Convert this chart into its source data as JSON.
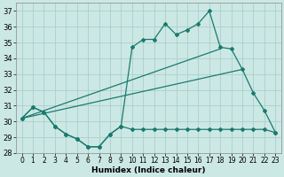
{
  "xlabel": "Humidex (Indice chaleur)",
  "bg_color": "#cce8e4",
  "grid_color": "#aacfcb",
  "line_color": "#1a7a6e",
  "xlim": [
    -0.5,
    23.5
  ],
  "ylim": [
    28,
    37.5
  ],
  "xticks": [
    0,
    1,
    2,
    3,
    4,
    5,
    6,
    7,
    8,
    9,
    10,
    11,
    12,
    13,
    14,
    15,
    16,
    17,
    18,
    19,
    20,
    21,
    22,
    23
  ],
  "yticks": [
    28,
    29,
    30,
    31,
    32,
    33,
    34,
    35,
    36,
    37
  ],
  "series1_x": [
    0,
    1,
    2,
    3,
    4,
    5,
    6,
    7,
    8,
    9,
    10,
    11,
    12,
    13,
    14,
    15,
    16,
    17,
    18,
    19,
    20,
    21,
    22,
    23
  ],
  "series1_y": [
    30.2,
    30.9,
    30.6,
    29.7,
    29.2,
    28.9,
    28.4,
    28.4,
    29.2,
    29.7,
    34.7,
    35.2,
    35.2,
    36.2,
    35.5,
    35.8,
    36.2,
    37.0,
    34.7,
    34.6,
    33.3,
    31.8,
    30.7,
    29.3
  ],
  "series2_x": [
    0,
    18
  ],
  "series2_y": [
    30.2,
    34.6
  ],
  "series3_x": [
    0,
    20
  ],
  "series3_y": [
    30.2,
    33.3
  ],
  "series4_x": [
    0,
    1,
    2,
    3,
    4,
    5,
    6,
    7,
    8,
    9,
    10,
    11,
    12,
    13,
    14,
    15,
    16,
    17,
    18,
    19,
    20,
    21,
    22,
    23
  ],
  "series4_y": [
    30.2,
    30.9,
    30.6,
    29.7,
    29.2,
    28.9,
    28.4,
    28.4,
    29.2,
    29.7,
    29.5,
    29.5,
    29.5,
    29.5,
    29.5,
    29.5,
    29.5,
    29.5,
    29.5,
    29.5,
    29.5,
    29.5,
    29.5,
    29.3
  ]
}
